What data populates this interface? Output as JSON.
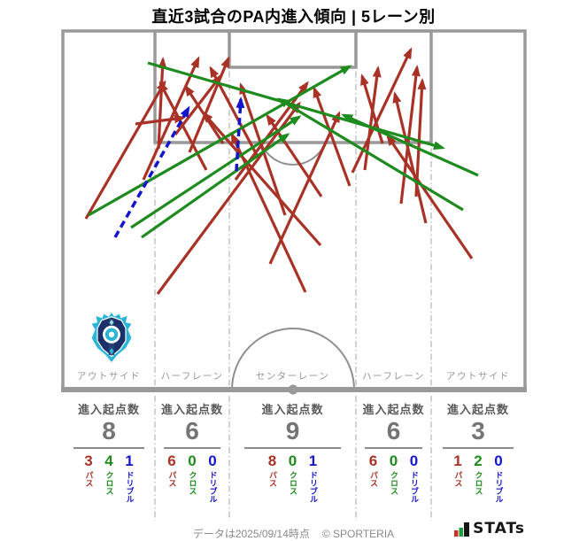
{
  "chart_data": {
    "type": "table",
    "title": "直近3試合のPA内進入傾向 | 5レーン別",
    "categories": [
      "アウトサイド",
      "ハーフレーン",
      "センターレーン",
      "ハーフレーン",
      "アウトサイド"
    ],
    "series": [
      {
        "name": "進入起点数",
        "values": [
          8,
          6,
          9,
          6,
          3
        ]
      },
      {
        "name": "パス",
        "values": [
          3,
          6,
          8,
          6,
          1
        ]
      },
      {
        "name": "クロス",
        "values": [
          4,
          0,
          0,
          0,
          2
        ]
      },
      {
        "name": "ドリブル",
        "values": [
          1,
          0,
          1,
          0,
          0
        ]
      }
    ],
    "legend": [
      "パス",
      "クロス",
      "ドリブル"
    ]
  },
  "colors": {
    "pass": "#a93226",
    "cross": "#1e8b1e",
    "dribble": "#1515cc",
    "pitch_line": "#999999",
    "lane_divider": "#b5b5b5"
  },
  "arrows": [
    {
      "kind": "pass",
      "from": [
        153,
        140
      ],
      "to": [
        207,
        133
      ]
    },
    {
      "kind": "pass",
      "from": [
        97,
        247
      ],
      "to": [
        186,
        93
      ]
    },
    {
      "kind": "pass",
      "from": [
        162,
        203
      ],
      "to": [
        224,
        66
      ]
    },
    {
      "kind": "pass",
      "from": [
        179,
        168
      ],
      "to": [
        184,
        67
      ]
    },
    {
      "kind": "pass",
      "from": [
        214,
        172
      ],
      "to": [
        258,
        66
      ]
    },
    {
      "kind": "pass",
      "from": [
        233,
        192
      ],
      "to": [
        181,
        94
      ]
    },
    {
      "kind": "pass",
      "from": [
        198,
        152
      ],
      "to": [
        249,
        86
      ]
    },
    {
      "kind": "pass",
      "from": [
        252,
        162
      ],
      "to": [
        210,
        98
      ]
    },
    {
      "kind": "pass",
      "from": [
        178,
        332
      ],
      "to": [
        338,
        117
      ]
    },
    {
      "kind": "pass",
      "from": [
        291,
        177
      ],
      "to": [
        238,
        77
      ]
    },
    {
      "kind": "pass",
      "from": [
        322,
        243
      ],
      "to": [
        272,
        96
      ]
    },
    {
      "kind": "pass",
      "from": [
        266,
        203
      ],
      "to": [
        347,
        94
      ]
    },
    {
      "kind": "pass",
      "from": [
        362,
        277
      ],
      "to": [
        230,
        128
      ]
    },
    {
      "kind": "pass",
      "from": [
        305,
        298
      ],
      "to": [
        383,
        128
      ]
    },
    {
      "kind": "pass",
      "from": [
        363,
        222
      ],
      "to": [
        302,
        131
      ]
    },
    {
      "kind": "pass",
      "from": [
        345,
        330
      ],
      "to": [
        262,
        152
      ]
    },
    {
      "kind": "pass",
      "from": [
        395,
        210
      ],
      "to": [
        355,
        100
      ]
    },
    {
      "kind": "pass",
      "from": [
        398,
        195
      ],
      "to": [
        464,
        56
      ]
    },
    {
      "kind": "pass",
      "from": [
        412,
        192
      ],
      "to": [
        427,
        77
      ]
    },
    {
      "kind": "pass",
      "from": [
        453,
        230
      ],
      "to": [
        471,
        76
      ]
    },
    {
      "kind": "pass",
      "from": [
        481,
        252
      ],
      "to": [
        446,
        106
      ]
    },
    {
      "kind": "pass",
      "from": [
        432,
        162
      ],
      "to": [
        409,
        86
      ]
    },
    {
      "kind": "pass",
      "from": [
        470,
        222
      ],
      "to": [
        477,
        91
      ]
    },
    {
      "kind": "pass",
      "from": [
        533,
        292
      ],
      "to": [
        438,
        154
      ]
    },
    {
      "kind": "cross",
      "from": [
        100,
        243
      ],
      "to": [
        395,
        75
      ]
    },
    {
      "kind": "cross",
      "from": [
        148,
        257
      ],
      "to": [
        338,
        132
      ]
    },
    {
      "kind": "cross",
      "from": [
        160,
        268
      ],
      "to": [
        325,
        152
      ]
    },
    {
      "kind": "cross",
      "from": [
        167,
        71
      ],
      "to": [
        500,
        167
      ]
    },
    {
      "kind": "cross",
      "from": [
        523,
        237
      ],
      "to": [
        315,
        112
      ]
    },
    {
      "kind": "cross",
      "from": [
        540,
        198
      ],
      "to": [
        388,
        130
      ]
    },
    {
      "kind": "dribble",
      "from": [
        130,
        268
      ],
      "to": [
        213,
        122
      ]
    },
    {
      "kind": "dribble",
      "from": [
        267,
        193
      ],
      "to": [
        272,
        112
      ]
    }
  ],
  "footer": {
    "note": "データは2025/09/14時点",
    "copyright": "© SPORTERIA",
    "brand": "STATs"
  }
}
